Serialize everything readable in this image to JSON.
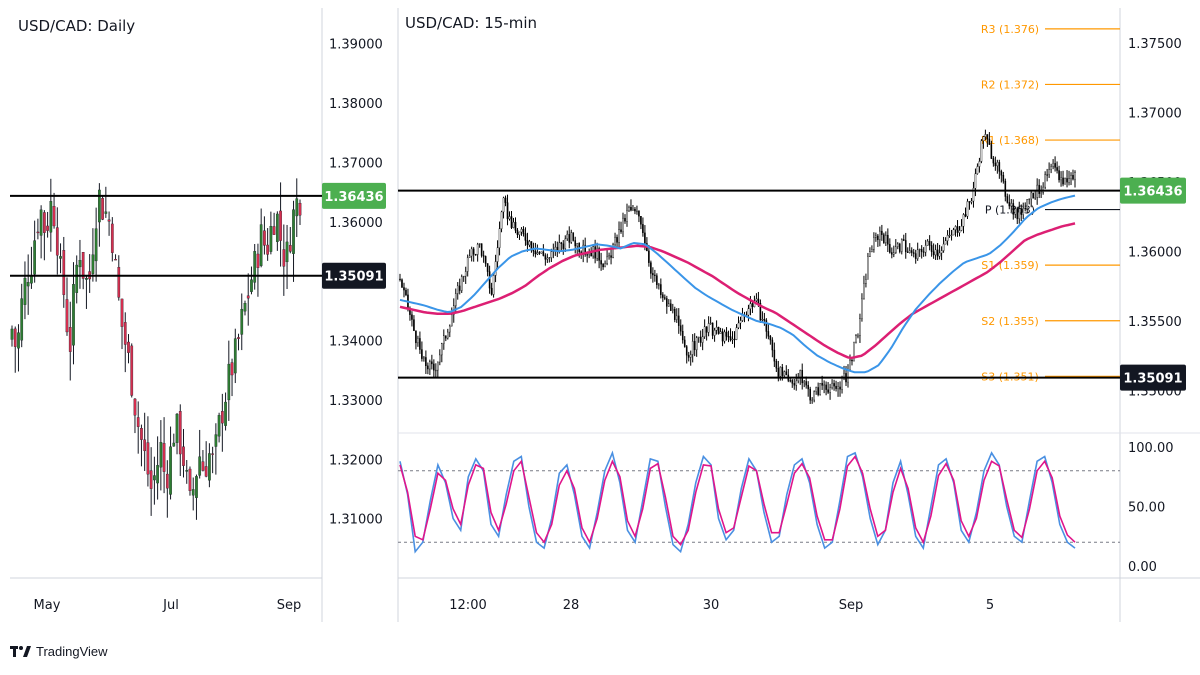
{
  "brand": {
    "name": "TradingView",
    "logo_icon": "tradingview-logo-icon"
  },
  "colors": {
    "bull": "#2e7d32",
    "bear": "#d32f4f",
    "ma_fast": "#3a95e8",
    "ma_slow": "#dc1f73",
    "pivot": "#ff9800",
    "stoch_k": "#4a90e2",
    "stoch_d": "#e0158b",
    "badge_green": "#4caf50",
    "badge_black": "#131722",
    "grid": "#e0e3eb",
    "text": "#131722",
    "line": "#000000"
  },
  "chart_data": [
    {
      "type": "candlestick",
      "title": "USD/CAD: Daily",
      "ylim": [
        1.3,
        1.396
      ],
      "y_ticks": [
        "1.39000",
        "1.38000",
        "1.37000",
        "1.36000",
        "1.35000",
        "1.34000",
        "1.33000",
        "1.32000",
        "1.31000"
      ],
      "x_ticks": [
        "May",
        "Jul",
        "Sep"
      ],
      "levels": [
        {
          "label": "1.36436",
          "value": 1.36436,
          "badge": "green"
        },
        {
          "label": "1.35091",
          "value": 1.35091,
          "badge": "black"
        }
      ],
      "close_path": [
        1.342,
        1.338,
        1.346,
        1.351,
        1.353,
        1.359,
        1.362,
        1.358,
        1.363,
        1.361,
        1.352,
        1.347,
        1.338,
        1.349,
        1.356,
        1.351,
        1.349,
        1.358,
        1.365,
        1.362,
        1.361,
        1.357,
        1.348,
        1.342,
        1.338,
        1.333,
        1.327,
        1.323,
        1.319,
        1.315,
        1.318,
        1.322,
        1.316,
        1.321,
        1.326,
        1.323,
        1.319,
        1.312,
        1.316,
        1.321,
        1.318,
        1.321,
        1.319,
        1.325,
        1.329,
        1.333,
        1.336,
        1.339,
        1.344,
        1.347,
        1.351,
        1.354,
        1.358,
        1.355,
        1.359,
        1.362,
        1.357,
        1.353,
        1.358,
        1.363,
        1.364
      ]
    },
    {
      "type": "candlestick",
      "title": "USD/CAD: 15-min",
      "ylim": [
        1.3475,
        1.3775
      ],
      "y_ticks": [
        "1.37500",
        "1.37000",
        "1.36500",
        "1.36000",
        "1.35500",
        "1.35000"
      ],
      "x_ticks": [
        "12:00",
        "28",
        "30",
        "Sep",
        "5"
      ],
      "levels": [
        {
          "label": "1.36436",
          "value": 1.36436,
          "badge": "green"
        },
        {
          "label": "1.35091",
          "value": 1.35091,
          "badge": "black"
        }
      ],
      "pivots": [
        {
          "label": "R3 (1.376)",
          "value": 1.376
        },
        {
          "label": "R2 (1.372)",
          "value": 1.372
        },
        {
          "label": "R1 (1.368)",
          "value": 1.368
        },
        {
          "label": "P (1.363)",
          "value": 1.363
        },
        {
          "label": "S1 (1.359)",
          "value": 1.359
        },
        {
          "label": "S2 (1.355)",
          "value": 1.355
        },
        {
          "label": "S3 (1.351)",
          "value": 1.351
        }
      ],
      "close_path": [
        1.358,
        1.355,
        1.352,
        1.3515,
        1.354,
        1.357,
        1.3595,
        1.3605,
        1.357,
        1.3635,
        1.3615,
        1.361,
        1.36,
        1.3595,
        1.3605,
        1.361,
        1.36,
        1.36,
        1.359,
        1.361,
        1.363,
        1.3625,
        1.3585,
        1.3565,
        1.3555,
        1.3525,
        1.3535,
        1.3545,
        1.354,
        1.3535,
        1.3555,
        1.3565,
        1.3545,
        1.3515,
        1.3505,
        1.351,
        1.3495,
        1.3505,
        1.35,
        1.351,
        1.354,
        1.36,
        1.3615,
        1.36,
        1.3605,
        1.3595,
        1.3605,
        1.36,
        1.361,
        1.362,
        1.364,
        1.3685,
        1.3665,
        1.364,
        1.3625,
        1.364,
        1.3645,
        1.366,
        1.365,
        1.3655
      ],
      "ma_fast_path": [
        1.3565,
        1.3563,
        1.3561,
        1.3558,
        1.3556,
        1.356,
        1.3568,
        1.3578,
        1.3588,
        1.3596,
        1.36,
        1.3602,
        1.3601,
        1.36,
        1.3601,
        1.3603,
        1.3605,
        1.3604,
        1.3602,
        1.3606,
        1.3605,
        1.3598,
        1.359,
        1.3582,
        1.3574,
        1.3568,
        1.3563,
        1.3558,
        1.3554,
        1.355,
        1.3548,
        1.3545,
        1.354,
        1.3532,
        1.3525,
        1.352,
        1.3516,
        1.3513,
        1.3513,
        1.3518,
        1.353,
        1.3545,
        1.3558,
        1.3568,
        1.3577,
        1.3585,
        1.3592,
        1.3595,
        1.3598,
        1.3605,
        1.3614,
        1.3624,
        1.3631,
        1.3635,
        1.3638,
        1.364
      ],
      "ma_slow_path": [
        1.356,
        1.3558,
        1.3556,
        1.3555,
        1.3555,
        1.3557,
        1.356,
        1.3563,
        1.3566,
        1.357,
        1.3575,
        1.3582,
        1.3588,
        1.3593,
        1.3597,
        1.3599,
        1.3601,
        1.3602,
        1.3603,
        1.3604,
        1.3603,
        1.36,
        1.3596,
        1.3592,
        1.3587,
        1.3582,
        1.3576,
        1.357,
        1.3565,
        1.356,
        1.3556,
        1.355,
        1.3544,
        1.3538,
        1.3532,
        1.3527,
        1.3523,
        1.3525,
        1.3532,
        1.354,
        1.3548,
        1.3555,
        1.356,
        1.3565,
        1.357,
        1.3575,
        1.358,
        1.3585,
        1.3592,
        1.36,
        1.3608,
        1.3612,
        1.3615,
        1.3618,
        1.362
      ],
      "oscillator": {
        "y_ticks": [
          "100.00",
          "50.00",
          "0.00"
        ],
        "levels": [
          80,
          20
        ],
        "k_path": [
          88,
          60,
          12,
          20,
          55,
          85,
          70,
          40,
          30,
          75,
          90,
          80,
          35,
          25,
          60,
          88,
          92,
          50,
          20,
          15,
          40,
          78,
          85,
          60,
          25,
          15,
          45,
          80,
          95,
          70,
          30,
          20,
          55,
          90,
          88,
          50,
          18,
          12,
          35,
          70,
          92,
          85,
          40,
          22,
          30,
          65,
          90,
          80,
          45,
          20,
          25,
          60,
          85,
          90,
          70,
          35,
          15,
          20,
          55,
          92,
          95,
          75,
          40,
          18,
          30,
          70,
          88,
          60,
          25,
          15,
          50,
          85,
          90,
          70,
          30,
          20,
          45,
          80,
          95,
          85,
          50,
          25,
          20,
          55,
          88,
          92,
          70,
          35,
          20,
          15
        ],
        "d_path": [
          85,
          62,
          25,
          22,
          48,
          78,
          72,
          48,
          35,
          68,
          85,
          82,
          45,
          30,
          52,
          80,
          88,
          58,
          28,
          20,
          35,
          68,
          80,
          65,
          32,
          20,
          40,
          72,
          88,
          75,
          38,
          25,
          48,
          82,
          86,
          58,
          25,
          18,
          30,
          62,
          85,
          84,
          48,
          28,
          32,
          58,
          84,
          80,
          52,
          28,
          28,
          52,
          78,
          86,
          74,
          42,
          22,
          22,
          48,
          84,
          92,
          78,
          48,
          25,
          30,
          62,
          82,
          65,
          32,
          20,
          42,
          76,
          86,
          72,
          38,
          25,
          40,
          72,
          88,
          84,
          56,
          30,
          24,
          48,
          80,
          88,
          74,
          42,
          26,
          20
        ]
      }
    }
  ]
}
